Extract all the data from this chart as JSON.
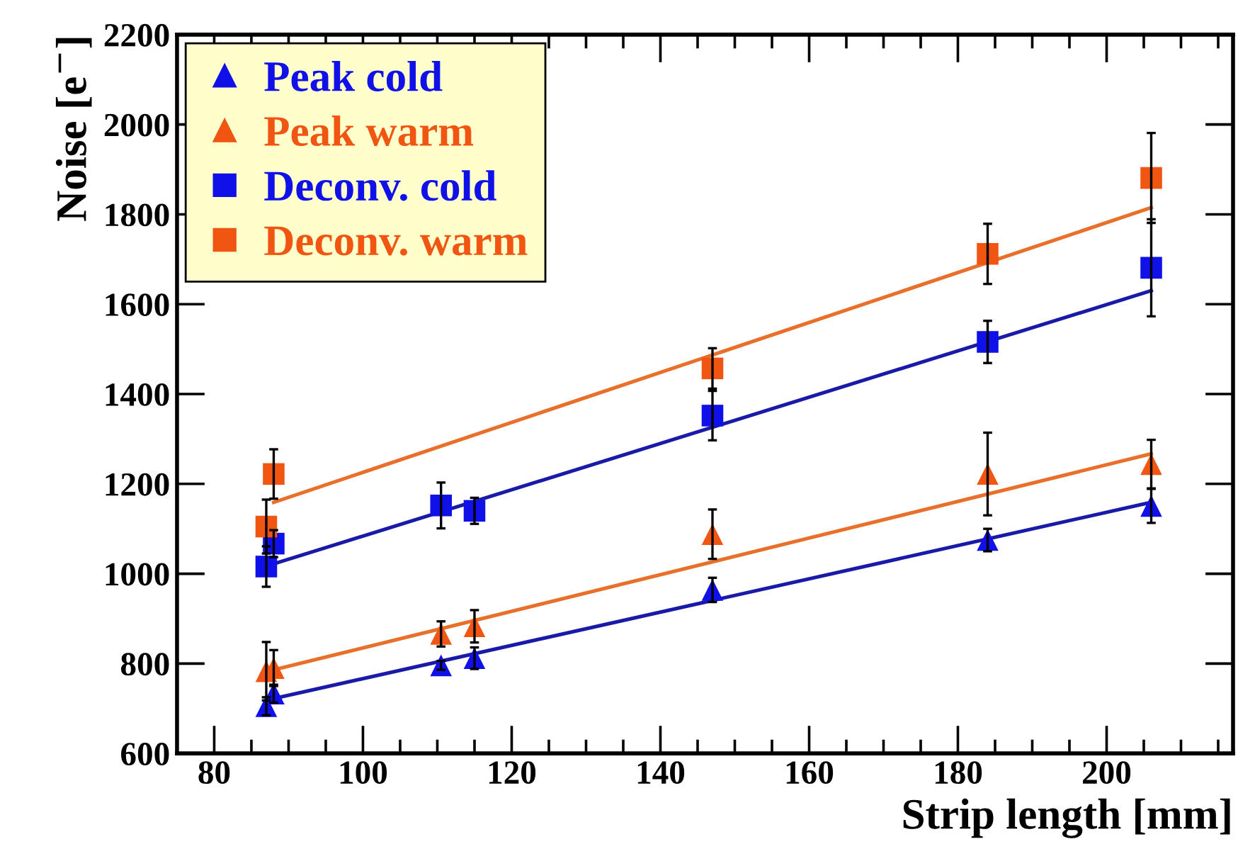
{
  "chart_data": {
    "type": "scatter",
    "xlabel": "Strip length [mm]",
    "ylabel": "Noise [e$^{−}$]",
    "xlim": [
      75,
      217
    ],
    "xticks": [
      80,
      100,
      120,
      140,
      160,
      180,
      200
    ],
    "ylim": [
      600,
      2200
    ],
    "yticks": [
      600,
      800,
      1000,
      1200,
      1400,
      1600,
      1800,
      2000,
      2200
    ],
    "grid": false,
    "legend": "top left",
    "series": [
      {
        "name": "Peak cold",
        "marker": "triangle",
        "color": "#1010e8",
        "x": [
          87,
          88,
          110.5,
          115,
          147,
          184,
          206
        ],
        "values": [
          705,
          733,
          796,
          812,
          964,
          1075,
          1151
        ],
        "errors": [
          20,
          20,
          10,
          24,
          27,
          25,
          38
        ]
      },
      {
        "name": "Peak warm",
        "marker": "triangle",
        "color": "#f05512",
        "x": [
          87,
          88,
          110.5,
          115,
          147,
          184,
          206
        ],
        "values": [
          783,
          790,
          866,
          883,
          1088,
          1222,
          1244
        ],
        "errors": [
          65,
          40,
          28,
          36,
          55,
          92,
          54
        ]
      },
      {
        "name": "Deconv. cold",
        "marker": "square",
        "color": "#1010e8",
        "x": [
          87,
          88,
          110.5,
          115,
          147,
          184,
          206
        ],
        "values": [
          1016,
          1067,
          1152,
          1140,
          1352,
          1516,
          1681
        ],
        "errors": [
          45,
          30,
          51,
          29,
          55,
          47,
          108
        ]
      },
      {
        "name": "Deconv. warm",
        "marker": "square",
        "color": "#f05512",
        "x": [
          87,
          88,
          147,
          184,
          206
        ],
        "values": [
          1105,
          1222,
          1457,
          1712,
          1881
        ],
        "errors": [
          60,
          55,
          45,
          67,
          100
        ]
      },
      {
        "type": "line",
        "marker": "none",
        "line_style": "solid",
        "color": "#1a1aa8",
        "x": [
          88,
          206
        ],
        "values": [
          722,
          1159
        ]
      },
      {
        "type": "line",
        "marker": "none",
        "line_style": "solid",
        "color": "#e8702a",
        "x": [
          88,
          206
        ],
        "values": [
          786,
          1267
        ]
      },
      {
        "type": "line",
        "marker": "none",
        "line_style": "solid",
        "color": "#1a1aa8",
        "x": [
          88,
          206
        ],
        "values": [
          1022,
          1630
        ]
      },
      {
        "type": "line",
        "marker": "none",
        "line_style": "solid",
        "color": "#e8702a",
        "x": [
          88,
          206
        ],
        "values": [
          1159,
          1815
        ]
      }
    ]
  }
}
